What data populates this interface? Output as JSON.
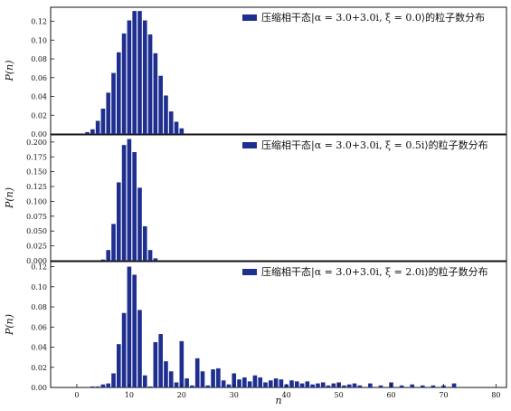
{
  "chart_data": [
    {
      "type": "bar",
      "ylabel": "P(n)",
      "xlabel": "",
      "legend": {
        "label": "压缩相干态|α = 3.0+3.0i, ξ = 0.0⟩的粒子数分布",
        "color": "#1f2f8f",
        "placement": "top-right"
      },
      "xlim": [
        -5,
        82
      ],
      "ylim": [
        0,
        0.135
      ],
      "yticks": [
        0.0,
        0.02,
        0.04,
        0.06,
        0.08,
        0.1,
        0.12
      ],
      "ytick_labels": [
        "0.00",
        "0.02",
        "0.04",
        "0.06",
        "0.08",
        "0.10",
        "0.12"
      ],
      "x": [
        2,
        3,
        4,
        5,
        6,
        7,
        8,
        9,
        10,
        11,
        12,
        13,
        14,
        15,
        16,
        17,
        18,
        19,
        20
      ],
      "values": [
        0.002,
        0.005,
        0.014,
        0.027,
        0.044,
        0.065,
        0.087,
        0.107,
        0.121,
        0.131,
        0.131,
        0.121,
        0.106,
        0.086,
        0.062,
        0.041,
        0.024,
        0.013,
        0.006
      ]
    },
    {
      "type": "bar",
      "ylabel": "P(n)",
      "xlabel": "",
      "legend": {
        "label": "压缩相干态|α = 3.0+3.0i, ξ = 0.5i⟩的粒子数分布",
        "color": "#1f2f8f",
        "placement": "top-right"
      },
      "xlim": [
        -5,
        82
      ],
      "ylim": [
        0,
        0.212
      ],
      "yticks": [
        0.0,
        0.025,
        0.05,
        0.075,
        0.1,
        0.125,
        0.15,
        0.175,
        0.2
      ],
      "ytick_labels": [
        "0.000",
        "0.025",
        "0.050",
        "0.075",
        "0.100",
        "0.125",
        "0.150",
        "0.175",
        "0.200"
      ],
      "x": [
        5,
        6,
        7,
        8,
        9,
        10,
        11,
        12,
        13,
        14,
        15
      ],
      "values": [
        0.002,
        0.018,
        0.062,
        0.132,
        0.195,
        0.205,
        0.183,
        0.123,
        0.058,
        0.018,
        0.004
      ]
    },
    {
      "type": "bar",
      "ylabel": "P(n)",
      "xlabel": "n",
      "legend": {
        "label": "压缩相干态|α = 3.0+3.0i, ξ = 2.0i⟩的粒子数分布",
        "color": "#1f2f8f",
        "placement": "top-right"
      },
      "xlim": [
        -5,
        82
      ],
      "ylim": [
        0,
        0.125
      ],
      "yticks": [
        0.0,
        0.02,
        0.04,
        0.06,
        0.08,
        0.1,
        0.12
      ],
      "ytick_labels": [
        "0.00",
        "0.02",
        "0.04",
        "0.06",
        "0.08",
        "0.10",
        "0.12"
      ],
      "xticks": [
        0,
        10,
        20,
        30,
        40,
        50,
        60,
        70,
        80
      ],
      "xtick_labels": [
        "0",
        "10",
        "20",
        "30",
        "40",
        "50",
        "60",
        "70",
        "80"
      ],
      "x": [
        3,
        4,
        5,
        6,
        7,
        8,
        9,
        10,
        11,
        12,
        13,
        14,
        15,
        16,
        17,
        18,
        19,
        20,
        21,
        22,
        23,
        24,
        25,
        26,
        27,
        28,
        29,
        30,
        31,
        32,
        33,
        34,
        35,
        36,
        37,
        38,
        39,
        40,
        41,
        42,
        43,
        44,
        45,
        46,
        47,
        48,
        49,
        50,
        51,
        52,
        53,
        54,
        56,
        58,
        60,
        62,
        64,
        66,
        68,
        70,
        72
      ],
      "values": [
        0.001,
        0.001,
        0.003,
        0.004,
        0.014,
        0.043,
        0.074,
        0.12,
        0.112,
        0.077,
        0.012,
        0.001,
        0.045,
        0.053,
        0.026,
        0.016,
        0.005,
        0.046,
        0.009,
        0.002,
        0.029,
        0.016,
        0.002,
        0.018,
        0.019,
        0.007,
        0.003,
        0.014,
        0.008,
        0.01,
        0.006,
        0.012,
        0.01,
        0.005,
        0.007,
        0.009,
        0.008,
        0.003,
        0.007,
        0.006,
        0.004,
        0.006,
        0.003,
        0.004,
        0.005,
        0.002,
        0.004,
        0.005,
        0.002,
        0.003,
        0.004,
        0.002,
        0.004,
        0.002,
        0.005,
        0.002,
        0.003,
        0.002,
        0.002,
        0.002,
        0.004
      ]
    }
  ]
}
